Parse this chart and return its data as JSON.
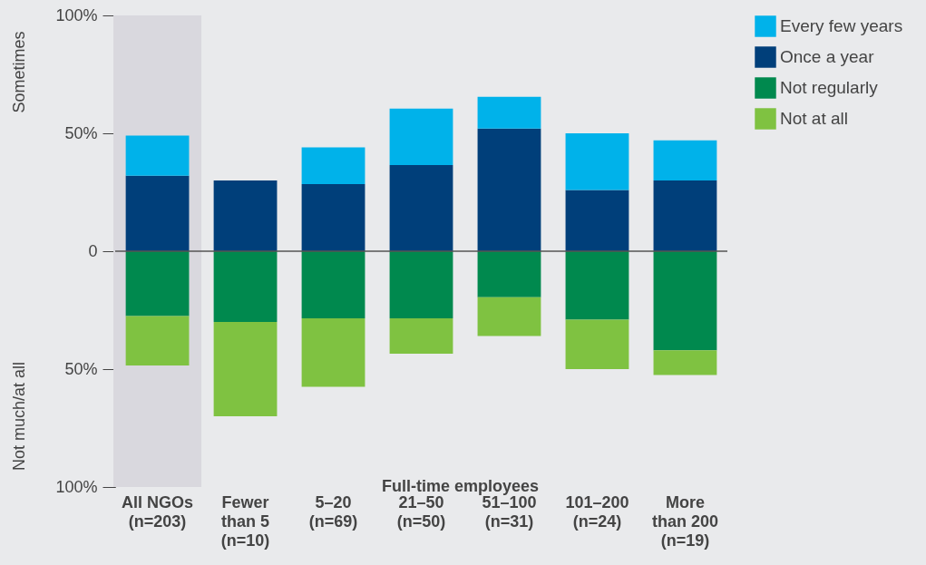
{
  "chart_data": {
    "type": "bar",
    "stacked": true,
    "xlabel": "Full-time employees",
    "categories": [
      "All NGOs\n(n=203)",
      "Fewer\nthan 5\n(n=10)",
      "5–20\n(n=69)",
      "21–50\n(n=50)",
      "51–100\n(n=31)",
      "101–200\n(n=24)",
      "More\nthan 200\n(n=19)"
    ],
    "series": [
      {
        "name": "Once a year",
        "color": "#003f7a",
        "values": [
          32,
          30,
          28.5,
          36.5,
          52,
          26,
          30
        ]
      },
      {
        "name": "Every few years",
        "color": "#00b2ea",
        "values": [
          17,
          0,
          15.5,
          24,
          13.5,
          24,
          17
        ]
      },
      {
        "name": "Not regularly",
        "color": "#00894e",
        "values": [
          -27.5,
          -30,
          -28.5,
          -28.5,
          -19.5,
          -29,
          -42
        ]
      },
      {
        "name": "Not at all",
        "color": "#7fc241",
        "values": [
          -21,
          -40,
          -29,
          -15,
          -16.5,
          -21,
          -10.5
        ]
      }
    ],
    "ylim": [
      -100,
      100
    ],
    "yticks": [
      {
        "value": -100,
        "label": "100%"
      },
      {
        "value": -50,
        "label": "50%"
      },
      0,
      {
        "value": 50,
        "label": "50%"
      },
      {
        "value": 100,
        "label": "100%"
      }
    ],
    "annotations": [
      "Sometimes",
      "Not much/at all"
    ],
    "bands": [
      {
        "axis": "x",
        "from": "All NGOs\n(n=203)",
        "to": "All NGOs\n(n=203)",
        "color": "#d9d8de"
      }
    ],
    "ref_lines": [
      {
        "axis": "y",
        "value": 0,
        "color": "#555555"
      }
    ],
    "legend": "right",
    "grid": false
  }
}
